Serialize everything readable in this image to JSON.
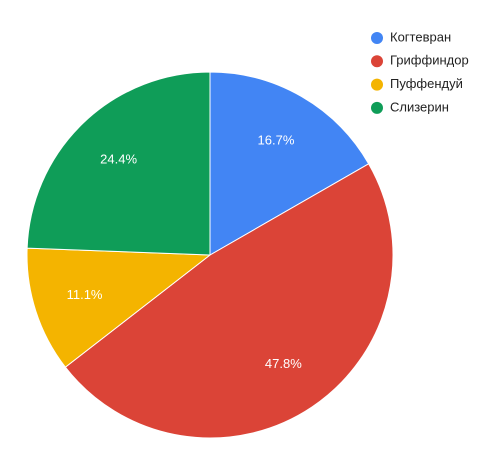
{
  "chart_data": {
    "type": "pie",
    "categories": [
      "Когтевран",
      "Гриффиндор",
      "Пуффендуй",
      "Слизерин"
    ],
    "values": [
      16.7,
      47.8,
      11.1,
      24.4
    ],
    "value_labels": [
      "16.7%",
      "47.8%",
      "11.1%",
      "24.4%"
    ],
    "colors": [
      "#4285f4",
      "#db4437",
      "#f4b400",
      "#0f9d58"
    ],
    "legend": "right"
  }
}
